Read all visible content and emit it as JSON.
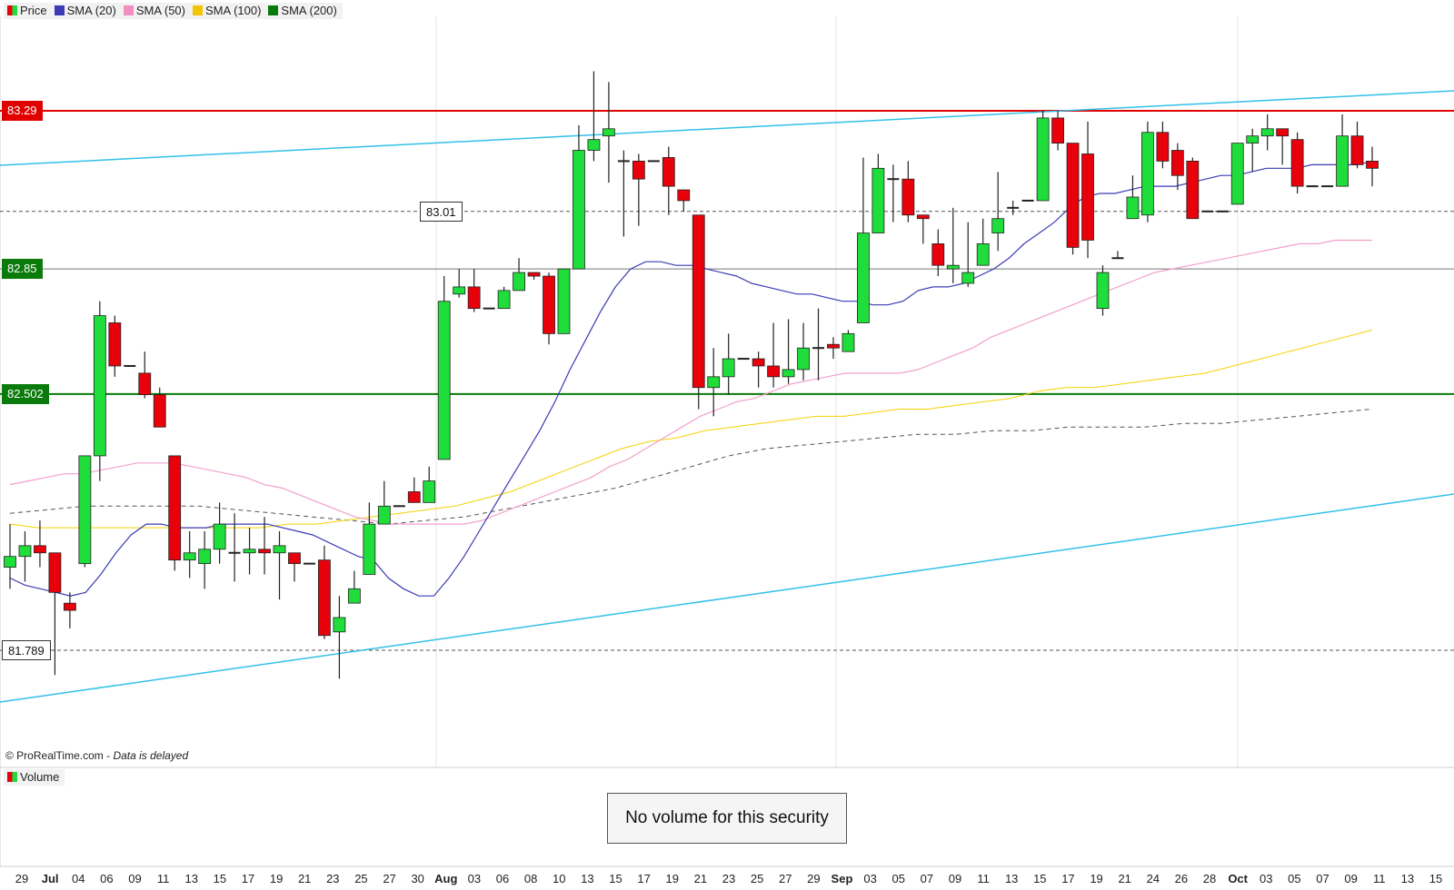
{
  "legend": [
    {
      "label": "Price",
      "color": "price"
    },
    {
      "label": "SMA (20)",
      "color": "#3b3bb5"
    },
    {
      "label": "SMA (50)",
      "color": "#f08fc0"
    },
    {
      "label": "SMA (100)",
      "color": "#f5c400"
    },
    {
      "label": "SMA (200)",
      "color": "#0a7a0a"
    }
  ],
  "credit": {
    "source": "© ProRealTime.com",
    "sep": " - ",
    "delayed": "Data is delayed"
  },
  "volume": {
    "label": "Volume",
    "message": "No volume for this security"
  },
  "price_labels": [
    {
      "text": "83.29",
      "style": "red"
    },
    {
      "text": "83.01",
      "style": "box"
    },
    {
      "text": "82.85",
      "style": "green"
    },
    {
      "text": "82.502",
      "style": "green"
    },
    {
      "text": "81.789",
      "style": "box"
    }
  ],
  "x_ticks": [
    "29",
    "Jul",
    "04",
    "06",
    "09",
    "11",
    "13",
    "15",
    "17",
    "19",
    "21",
    "23",
    "25",
    "27",
    "30",
    "Aug",
    "03",
    "06",
    "08",
    "10",
    "13",
    "15",
    "17",
    "19",
    "21",
    "23",
    "25",
    "27",
    "29",
    "Sep",
    "03",
    "05",
    "07",
    "09",
    "11",
    "13",
    "15",
    "17",
    "19",
    "21",
    "24",
    "26",
    "28",
    "Oct",
    "03",
    "05",
    "07",
    "09",
    "11",
    "13",
    "15"
  ],
  "chart_data": {
    "type": "candlestick",
    "y_scale": {
      "price_at_83_29": 83.29,
      "price_at_81_789": 81.789
    },
    "ylim": [
      81.55,
      83.55
    ],
    "candles": [
      {
        "o": 82.02,
        "h": 82.14,
        "l": 81.96,
        "c": 82.05
      },
      {
        "o": 82.05,
        "h": 82.12,
        "l": 81.98,
        "c": 82.08
      },
      {
        "o": 82.08,
        "h": 82.15,
        "l": 82.02,
        "c": 82.06
      },
      {
        "o": 82.06,
        "h": 82.06,
        "l": 81.72,
        "c": 81.95
      },
      {
        "o": 81.92,
        "h": 81.95,
        "l": 81.85,
        "c": 81.9
      },
      {
        "o": 82.03,
        "h": 82.33,
        "l": 82.02,
        "c": 82.33
      },
      {
        "o": 82.33,
        "h": 82.76,
        "l": 82.26,
        "c": 82.72
      },
      {
        "o": 82.7,
        "h": 82.72,
        "l": 82.55,
        "c": 82.58
      },
      {
        "o": 82.58,
        "h": 82.58,
        "l": 82.58,
        "c": 82.58
      },
      {
        "o": 82.56,
        "h": 82.62,
        "l": 82.49,
        "c": 82.5
      },
      {
        "o": 82.5,
        "h": 82.52,
        "l": 82.42,
        "c": 82.41
      },
      {
        "o": 82.33,
        "h": 82.33,
        "l": 82.01,
        "c": 82.04
      },
      {
        "o": 82.04,
        "h": 82.12,
        "l": 81.99,
        "c": 82.06
      },
      {
        "o": 82.03,
        "h": 82.12,
        "l": 81.96,
        "c": 82.07
      },
      {
        "o": 82.07,
        "h": 82.2,
        "l": 82.03,
        "c": 82.14
      },
      {
        "o": 82.06,
        "h": 82.17,
        "l": 81.98,
        "c": 82.06
      },
      {
        "o": 82.06,
        "h": 82.13,
        "l": 82.0,
        "c": 82.07
      },
      {
        "o": 82.07,
        "h": 82.16,
        "l": 82.0,
        "c": 82.06
      },
      {
        "o": 82.06,
        "h": 82.12,
        "l": 81.93,
        "c": 82.08
      },
      {
        "o": 82.06,
        "h": 82.06,
        "l": 81.98,
        "c": 82.03
      },
      {
        "o": 82.03,
        "h": 82.03,
        "l": 82.03,
        "c": 82.03
      },
      {
        "o": 82.04,
        "h": 82.08,
        "l": 81.82,
        "c": 81.83
      },
      {
        "o": 81.84,
        "h": 81.94,
        "l": 81.71,
        "c": 81.88
      },
      {
        "o": 81.92,
        "h": 82.01,
        "l": 81.92,
        "c": 81.96
      },
      {
        "o": 82.0,
        "h": 82.2,
        "l": 82.0,
        "c": 82.14
      },
      {
        "o": 82.14,
        "h": 82.26,
        "l": 82.14,
        "c": 82.19
      },
      {
        "o": 82.19,
        "h": 82.19,
        "l": 82.19,
        "c": 82.19
      },
      {
        "o": 82.23,
        "h": 82.27,
        "l": 82.21,
        "c": 82.2
      },
      {
        "o": 82.2,
        "h": 82.3,
        "l": 82.2,
        "c": 82.26
      },
      {
        "o": 82.32,
        "h": 82.83,
        "l": 82.32,
        "c": 82.76
      },
      {
        "o": 82.78,
        "h": 82.85,
        "l": 82.77,
        "c": 82.8
      },
      {
        "o": 82.8,
        "h": 82.85,
        "l": 82.73,
        "c": 82.74
      },
      {
        "o": 82.74,
        "h": 82.74,
        "l": 82.74,
        "c": 82.74
      },
      {
        "o": 82.74,
        "h": 82.8,
        "l": 82.74,
        "c": 82.79
      },
      {
        "o": 82.79,
        "h": 82.88,
        "l": 82.79,
        "c": 82.84
      },
      {
        "o": 82.84,
        "h": 82.84,
        "l": 82.82,
        "c": 82.83
      },
      {
        "o": 82.83,
        "h": 82.84,
        "l": 82.64,
        "c": 82.67
      },
      {
        "o": 82.67,
        "h": 82.85,
        "l": 82.67,
        "c": 82.85
      },
      {
        "o": 82.85,
        "h": 83.25,
        "l": 82.85,
        "c": 83.18
      },
      {
        "o": 83.18,
        "h": 83.4,
        "l": 83.15,
        "c": 83.21
      },
      {
        "o": 83.22,
        "h": 83.37,
        "l": 83.09,
        "c": 83.24
      },
      {
        "o": 83.15,
        "h": 83.18,
        "l": 82.94,
        "c": 83.15
      },
      {
        "o": 83.15,
        "h": 83.17,
        "l": 82.97,
        "c": 83.1
      },
      {
        "o": 83.15,
        "h": 83.15,
        "l": 83.15,
        "c": 83.15
      },
      {
        "o": 83.16,
        "h": 83.19,
        "l": 83.0,
        "c": 83.08
      },
      {
        "o": 83.07,
        "h": 83.05,
        "l": 83.01,
        "c": 83.04
      },
      {
        "o": 83.0,
        "h": 83.0,
        "l": 82.46,
        "c": 82.52
      },
      {
        "o": 82.52,
        "h": 82.63,
        "l": 82.44,
        "c": 82.55
      },
      {
        "o": 82.55,
        "h": 82.67,
        "l": 82.5,
        "c": 82.6
      },
      {
        "o": 82.6,
        "h": 82.6,
        "l": 82.6,
        "c": 82.6
      },
      {
        "o": 82.6,
        "h": 82.62,
        "l": 82.52,
        "c": 82.58
      },
      {
        "o": 82.58,
        "h": 82.7,
        "l": 82.52,
        "c": 82.55
      },
      {
        "o": 82.55,
        "h": 82.71,
        "l": 82.53,
        "c": 82.57
      },
      {
        "o": 82.57,
        "h": 82.7,
        "l": 82.54,
        "c": 82.63
      },
      {
        "o": 82.63,
        "h": 82.74,
        "l": 82.54,
        "c": 82.63
      },
      {
        "o": 82.64,
        "h": 82.66,
        "l": 82.6,
        "c": 82.63
      },
      {
        "o": 82.62,
        "h": 82.68,
        "l": 82.62,
        "c": 82.67
      },
      {
        "o": 82.7,
        "h": 83.16,
        "l": 82.7,
        "c": 82.95
      },
      {
        "o": 82.95,
        "h": 83.17,
        "l": 82.95,
        "c": 83.13
      },
      {
        "o": 83.1,
        "h": 83.14,
        "l": 82.98,
        "c": 83.1
      },
      {
        "o": 83.1,
        "h": 83.15,
        "l": 82.98,
        "c": 83.0
      },
      {
        "o": 83.0,
        "h": 83.0,
        "l": 82.92,
        "c": 82.99
      },
      {
        "o": 82.92,
        "h": 82.96,
        "l": 82.83,
        "c": 82.86
      },
      {
        "o": 82.85,
        "h": 83.02,
        "l": 82.81,
        "c": 82.86
      },
      {
        "o": 82.81,
        "h": 82.98,
        "l": 82.8,
        "c": 82.84
      },
      {
        "o": 82.86,
        "h": 82.99,
        "l": 82.87,
        "c": 82.92
      },
      {
        "o": 82.95,
        "h": 83.12,
        "l": 82.9,
        "c": 82.99
      },
      {
        "o": 83.02,
        "h": 83.04,
        "l": 83.0,
        "c": 83.02
      },
      {
        "o": 83.04,
        "h": 83.04,
        "l": 83.04,
        "c": 83.04
      },
      {
        "o": 83.04,
        "h": 83.29,
        "l": 83.04,
        "c": 83.27
      },
      {
        "o": 83.27,
        "h": 83.29,
        "l": 83.18,
        "c": 83.2
      },
      {
        "o": 83.2,
        "h": 83.2,
        "l": 82.89,
        "c": 82.91
      },
      {
        "o": 83.17,
        "h": 83.26,
        "l": 82.88,
        "c": 82.93
      },
      {
        "o": 82.74,
        "h": 82.86,
        "l": 82.72,
        "c": 82.84
      },
      {
        "o": 82.88,
        "h": 82.9,
        "l": 82.88,
        "c": 82.88
      },
      {
        "o": 82.99,
        "h": 83.11,
        "l": 82.99,
        "c": 83.05
      },
      {
        "o": 83.0,
        "h": 83.26,
        "l": 82.98,
        "c": 83.23
      },
      {
        "o": 83.23,
        "h": 83.26,
        "l": 83.13,
        "c": 83.15
      },
      {
        "o": 83.18,
        "h": 83.2,
        "l": 83.07,
        "c": 83.11
      },
      {
        "o": 83.15,
        "h": 83.16,
        "l": 83.0,
        "c": 82.99
      },
      {
        "o": 83.01,
        "h": 83.01,
        "l": 83.01,
        "c": 83.01
      },
      {
        "o": 83.01,
        "h": 83.01,
        "l": 83.01,
        "c": 83.01
      },
      {
        "o": 83.03,
        "h": 83.2,
        "l": 83.03,
        "c": 83.2
      },
      {
        "o": 83.2,
        "h": 83.24,
        "l": 83.12,
        "c": 83.22
      },
      {
        "o": 83.22,
        "h": 83.28,
        "l": 83.18,
        "c": 83.24
      },
      {
        "o": 83.24,
        "h": 83.24,
        "l": 83.14,
        "c": 83.22
      },
      {
        "o": 83.21,
        "h": 83.23,
        "l": 83.06,
        "c": 83.08
      },
      {
        "o": 83.08,
        "h": 83.08,
        "l": 83.08,
        "c": 83.08
      },
      {
        "o": 83.08,
        "h": 83.08,
        "l": 83.08,
        "c": 83.08
      },
      {
        "o": 83.08,
        "h": 83.28,
        "l": 83.08,
        "c": 83.22
      },
      {
        "o": 83.22,
        "h": 83.26,
        "l": 83.13,
        "c": 83.14
      },
      {
        "o": 83.15,
        "h": 83.19,
        "l": 83.08,
        "c": 83.13
      }
    ],
    "sma20": [
      81.99,
      81.97,
      81.96,
      81.95,
      81.94,
      81.95,
      82.0,
      82.06,
      82.11,
      82.14,
      82.14,
      82.13,
      82.13,
      82.13,
      82.14,
      82.14,
      82.14,
      82.14,
      82.13,
      82.12,
      82.11,
      82.09,
      82.07,
      82.05,
      82.04,
      81.99,
      81.96,
      81.94,
      81.94,
      81.99,
      82.05,
      82.12,
      82.19,
      82.26,
      82.33,
      82.4,
      82.48,
      82.57,
      82.65,
      82.73,
      82.8,
      82.85,
      82.87,
      82.87,
      82.86,
      82.86,
      82.85,
      82.84,
      82.83,
      82.81,
      82.8,
      82.79,
      82.78,
      82.78,
      82.77,
      82.76,
      82.76,
      82.75,
      82.75,
      82.76,
      82.79,
      82.8,
      82.8,
      82.81,
      82.83,
      82.85,
      82.88,
      82.92,
      82.95,
      82.98,
      83.02,
      83.05,
      83.06,
      83.06,
      83.07,
      83.08,
      83.08,
      83.08,
      83.09,
      83.1,
      83.11,
      83.11,
      83.12,
      83.13,
      83.13,
      83.13,
      83.14,
      83.14,
      83.14,
      83.14,
      83.15
    ],
    "sma50": [
      82.25,
      82.26,
      82.27,
      82.28,
      82.28,
      82.29,
      82.3,
      82.31,
      82.31,
      82.31,
      82.3,
      82.29,
      82.28,
      82.27,
      82.25,
      82.24,
      82.22,
      82.2,
      82.18,
      82.16,
      82.15,
      82.14,
      82.14,
      82.14,
      82.14,
      82.14,
      82.15,
      82.17,
      82.19,
      82.21,
      82.23,
      82.25,
      82.27,
      82.3,
      82.32,
      82.35,
      82.38,
      82.41,
      82.44,
      82.46,
      82.48,
      82.49,
      82.51,
      82.53,
      82.54,
      82.55,
      82.56,
      82.56,
      82.56,
      82.56,
      82.57,
      82.59,
      82.61,
      82.63,
      82.66,
      82.68,
      82.7,
      82.72,
      82.74,
      82.76,
      82.78,
      82.8,
      82.82,
      82.84,
      82.85,
      82.86,
      82.87,
      82.88,
      82.89,
      82.9,
      82.91,
      82.92,
      82.92,
      82.93,
      82.93,
      82.93
    ],
    "sma100": [
      82.14,
      82.13,
      82.13,
      82.13,
      82.13,
      82.13,
      82.13,
      82.13,
      82.13,
      82.13,
      82.14,
      82.14,
      82.15,
      82.16,
      82.17,
      82.18,
      82.19,
      82.21,
      82.23,
      82.26,
      82.29,
      82.32,
      82.35,
      82.37,
      82.38,
      82.4,
      82.41,
      82.42,
      82.43,
      82.44,
      82.44,
      82.45,
      82.46,
      82.46,
      82.47,
      82.48,
      82.49,
      82.51,
      82.52,
      82.52,
      82.53,
      82.54,
      82.55,
      82.56,
      82.58,
      82.6,
      82.62,
      82.64,
      82.66,
      82.68
    ],
    "sma200": [
      82.17,
      82.18,
      82.19,
      82.19,
      82.19,
      82.19,
      82.18,
      82.17,
      82.16,
      82.15,
      82.14,
      82.15,
      82.16,
      82.18,
      82.2,
      82.22,
      82.24,
      82.27,
      82.3,
      82.33,
      82.35,
      82.36,
      82.37,
      82.38,
      82.39,
      82.39,
      82.4,
      82.4,
      82.41,
      82.41,
      82.41,
      82.42,
      82.42,
      82.43,
      82.44,
      82.45,
      82.46
    ]
  }
}
